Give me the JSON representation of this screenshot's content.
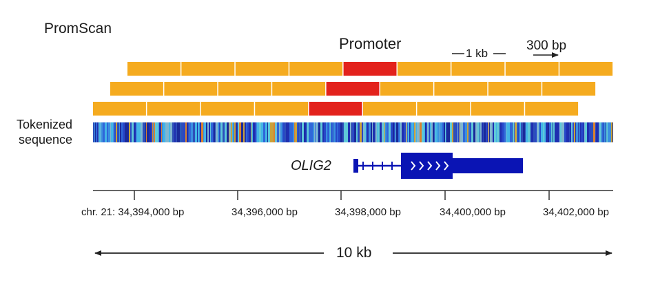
{
  "title": "PromScan",
  "labels": {
    "promoter": "Promoter",
    "window_size": "1 kb",
    "step_size": "300 bp",
    "tokenized_line1": "Tokenized",
    "tokenized_line2": "sequence",
    "gene": "OLIG2",
    "span": "10 kb"
  },
  "axis": {
    "ticks": [
      "chr. 21: 34,394,000 bp",
      "34,396,000 bp",
      "34,398,000 bp",
      "34,400,000 bp",
      "34,402,000 bp"
    ]
  },
  "colors": {
    "window": "#f5ab1f",
    "promoter_window": "#e3221c",
    "gene": "#0a14b4",
    "axis": "#333333"
  },
  "windows": {
    "rows": [
      {
        "count": 9,
        "promoter_index": 4
      },
      {
        "count": 9,
        "promoter_index": 4
      },
      {
        "count": 9,
        "promoter_index": 4
      }
    ]
  }
}
